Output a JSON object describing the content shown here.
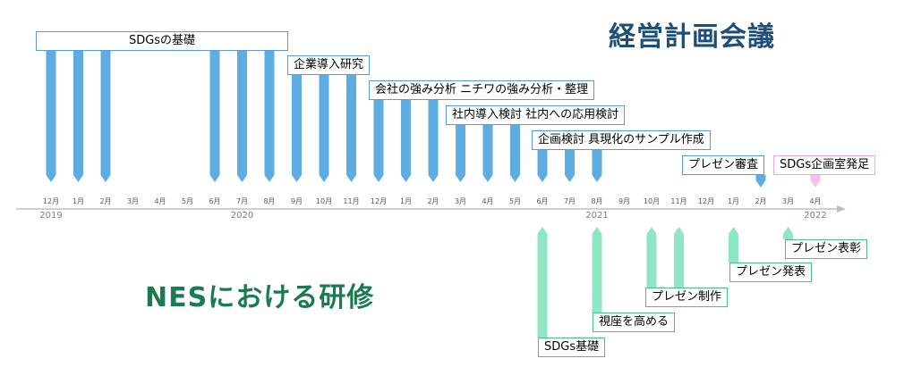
{
  "titles": {
    "top": "経営計画会議",
    "bottom": "NESにおける研修"
  },
  "colors": {
    "blue_arrow": "#5dade2",
    "green_arrow": "#8ee6c4",
    "pink_arrow": "#f5c1ef",
    "timeline": "#bfbfbf"
  },
  "timeline": {
    "months": [
      "12月",
      "1月",
      "2月",
      "3月",
      "4月",
      "5月",
      "6月",
      "7月",
      "8月",
      "9月",
      "10月",
      "11月",
      "12月",
      "1月",
      "2月",
      "3月",
      "4月",
      "5月",
      "6月",
      "7月",
      "8月",
      "9月",
      "10月",
      "11月",
      "12月",
      "1月",
      "2月",
      "3月",
      "4月"
    ],
    "years": [
      {
        "label": "2019",
        "month_index": 0
      },
      {
        "label": "2020",
        "month_index": 7
      },
      {
        "label": "2021",
        "month_index": 20
      },
      {
        "label": "2022",
        "month_index": 28
      }
    ]
  },
  "meetings": {
    "labels": [
      "SDGsの基礎",
      "企業導入研究",
      "会社の強み分析 ニチワの強み分析・整理",
      "社内導入検討 社内への応用検討",
      "企画検討 具現化のサンプル作成",
      "プレゼン審査",
      "SDGs企画室発足"
    ],
    "arrow_months": [
      0,
      1,
      2,
      6,
      7,
      8,
      9,
      10,
      11,
      12,
      13,
      14,
      15,
      16,
      17,
      18,
      19,
      20,
      26
    ]
  },
  "training": {
    "labels": [
      "SDGs基礎",
      "視座を高める",
      "プレゼン制作",
      "プレゼン発表",
      "プレゼン表彰"
    ],
    "arrow_months": [
      18,
      20,
      22,
      23,
      25,
      27
    ]
  },
  "launch_marker_month": 28
}
